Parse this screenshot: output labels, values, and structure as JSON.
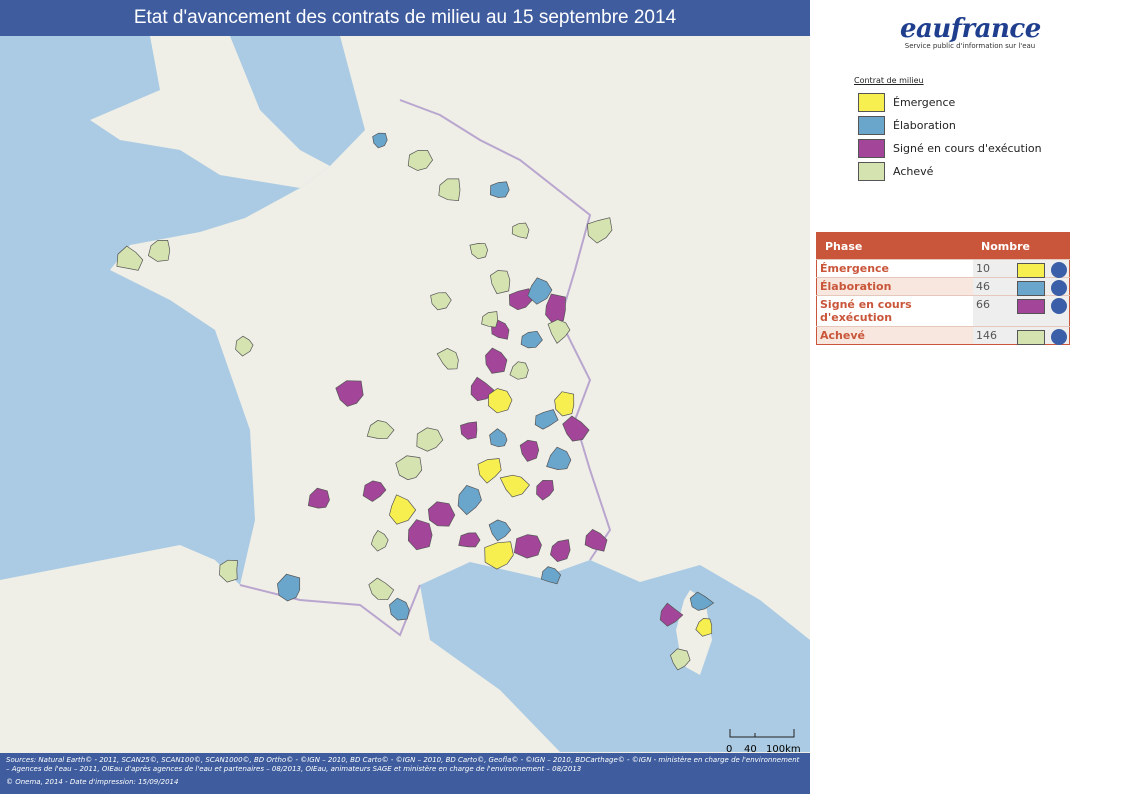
{
  "title": "Etat d'avancement des contrats de milieu au 15 septembre 2014",
  "logo": {
    "name": "eaufrance",
    "tagline": "Service public d'information sur l'eau"
  },
  "legend": {
    "title": "Contrat de milieu",
    "items": [
      {
        "label": "Émergence",
        "color": "#f7ef4f"
      },
      {
        "label": "Élaboration",
        "color": "#6aa5cc"
      },
      {
        "label": "Signé en cours d'exécution",
        "color": "#a3469a"
      },
      {
        "label": "Achevé",
        "color": "#d5e3b0"
      }
    ]
  },
  "table": {
    "headers": [
      "Phase",
      "Nombre"
    ],
    "rows": [
      [
        "Émergence",
        10
      ],
      [
        "Élaboration",
        46
      ],
      [
        "Signé en cours d'exécution",
        66
      ],
      [
        "Achevé",
        146
      ]
    ]
  },
  "scale": {
    "labels": [
      "0",
      "40",
      "100km"
    ]
  },
  "sources": "Sources: Natural Earth© - 2011, SCAN25©, SCAN100©, SCAN1000©, BD Ortho© - ©IGN – 2010, BD Carto© - ©IGN – 2010, BD Carto©, Geofla© - ©IGN – 2010, BDCarthage© - ©IGN - ministère en charge de l'environnement – Agences de l'eau – 2011, OIEau d'après agences de l'eau et partenaires – 08/2013, OIEau, animateurs SAGE et ministère en charge de l'environnement – 08/2013",
  "footer": "© Onema, 2014 - Date d'impression: 15/09/2014"
}
